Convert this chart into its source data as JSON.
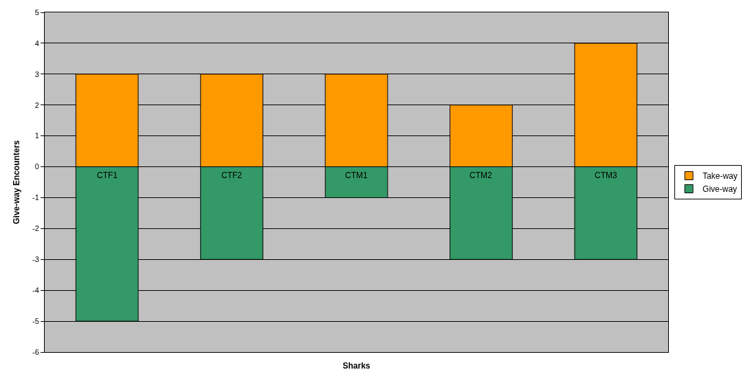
{
  "chart_data": {
    "type": "bar",
    "stacked": true,
    "xlabel": "Sharks",
    "ylabel": "Give-way Encounters",
    "categories": [
      "CTF1",
      "CTF2",
      "CTM1",
      "CTM2",
      "CTM3"
    ],
    "series": [
      {
        "name": "Take-way",
        "color": "#ff9900",
        "values": [
          3,
          3,
          3,
          2,
          4
        ]
      },
      {
        "name": "Give-way",
        "color": "#339966",
        "values": [
          -5,
          -3,
          -1,
          -3,
          -3
        ]
      }
    ],
    "ylim": [
      -6,
      5
    ],
    "yticks": [
      -6,
      -5,
      -4,
      -3,
      -2,
      -1,
      0,
      1,
      2,
      3,
      4,
      5
    ],
    "grid": "y",
    "legend": "right"
  }
}
